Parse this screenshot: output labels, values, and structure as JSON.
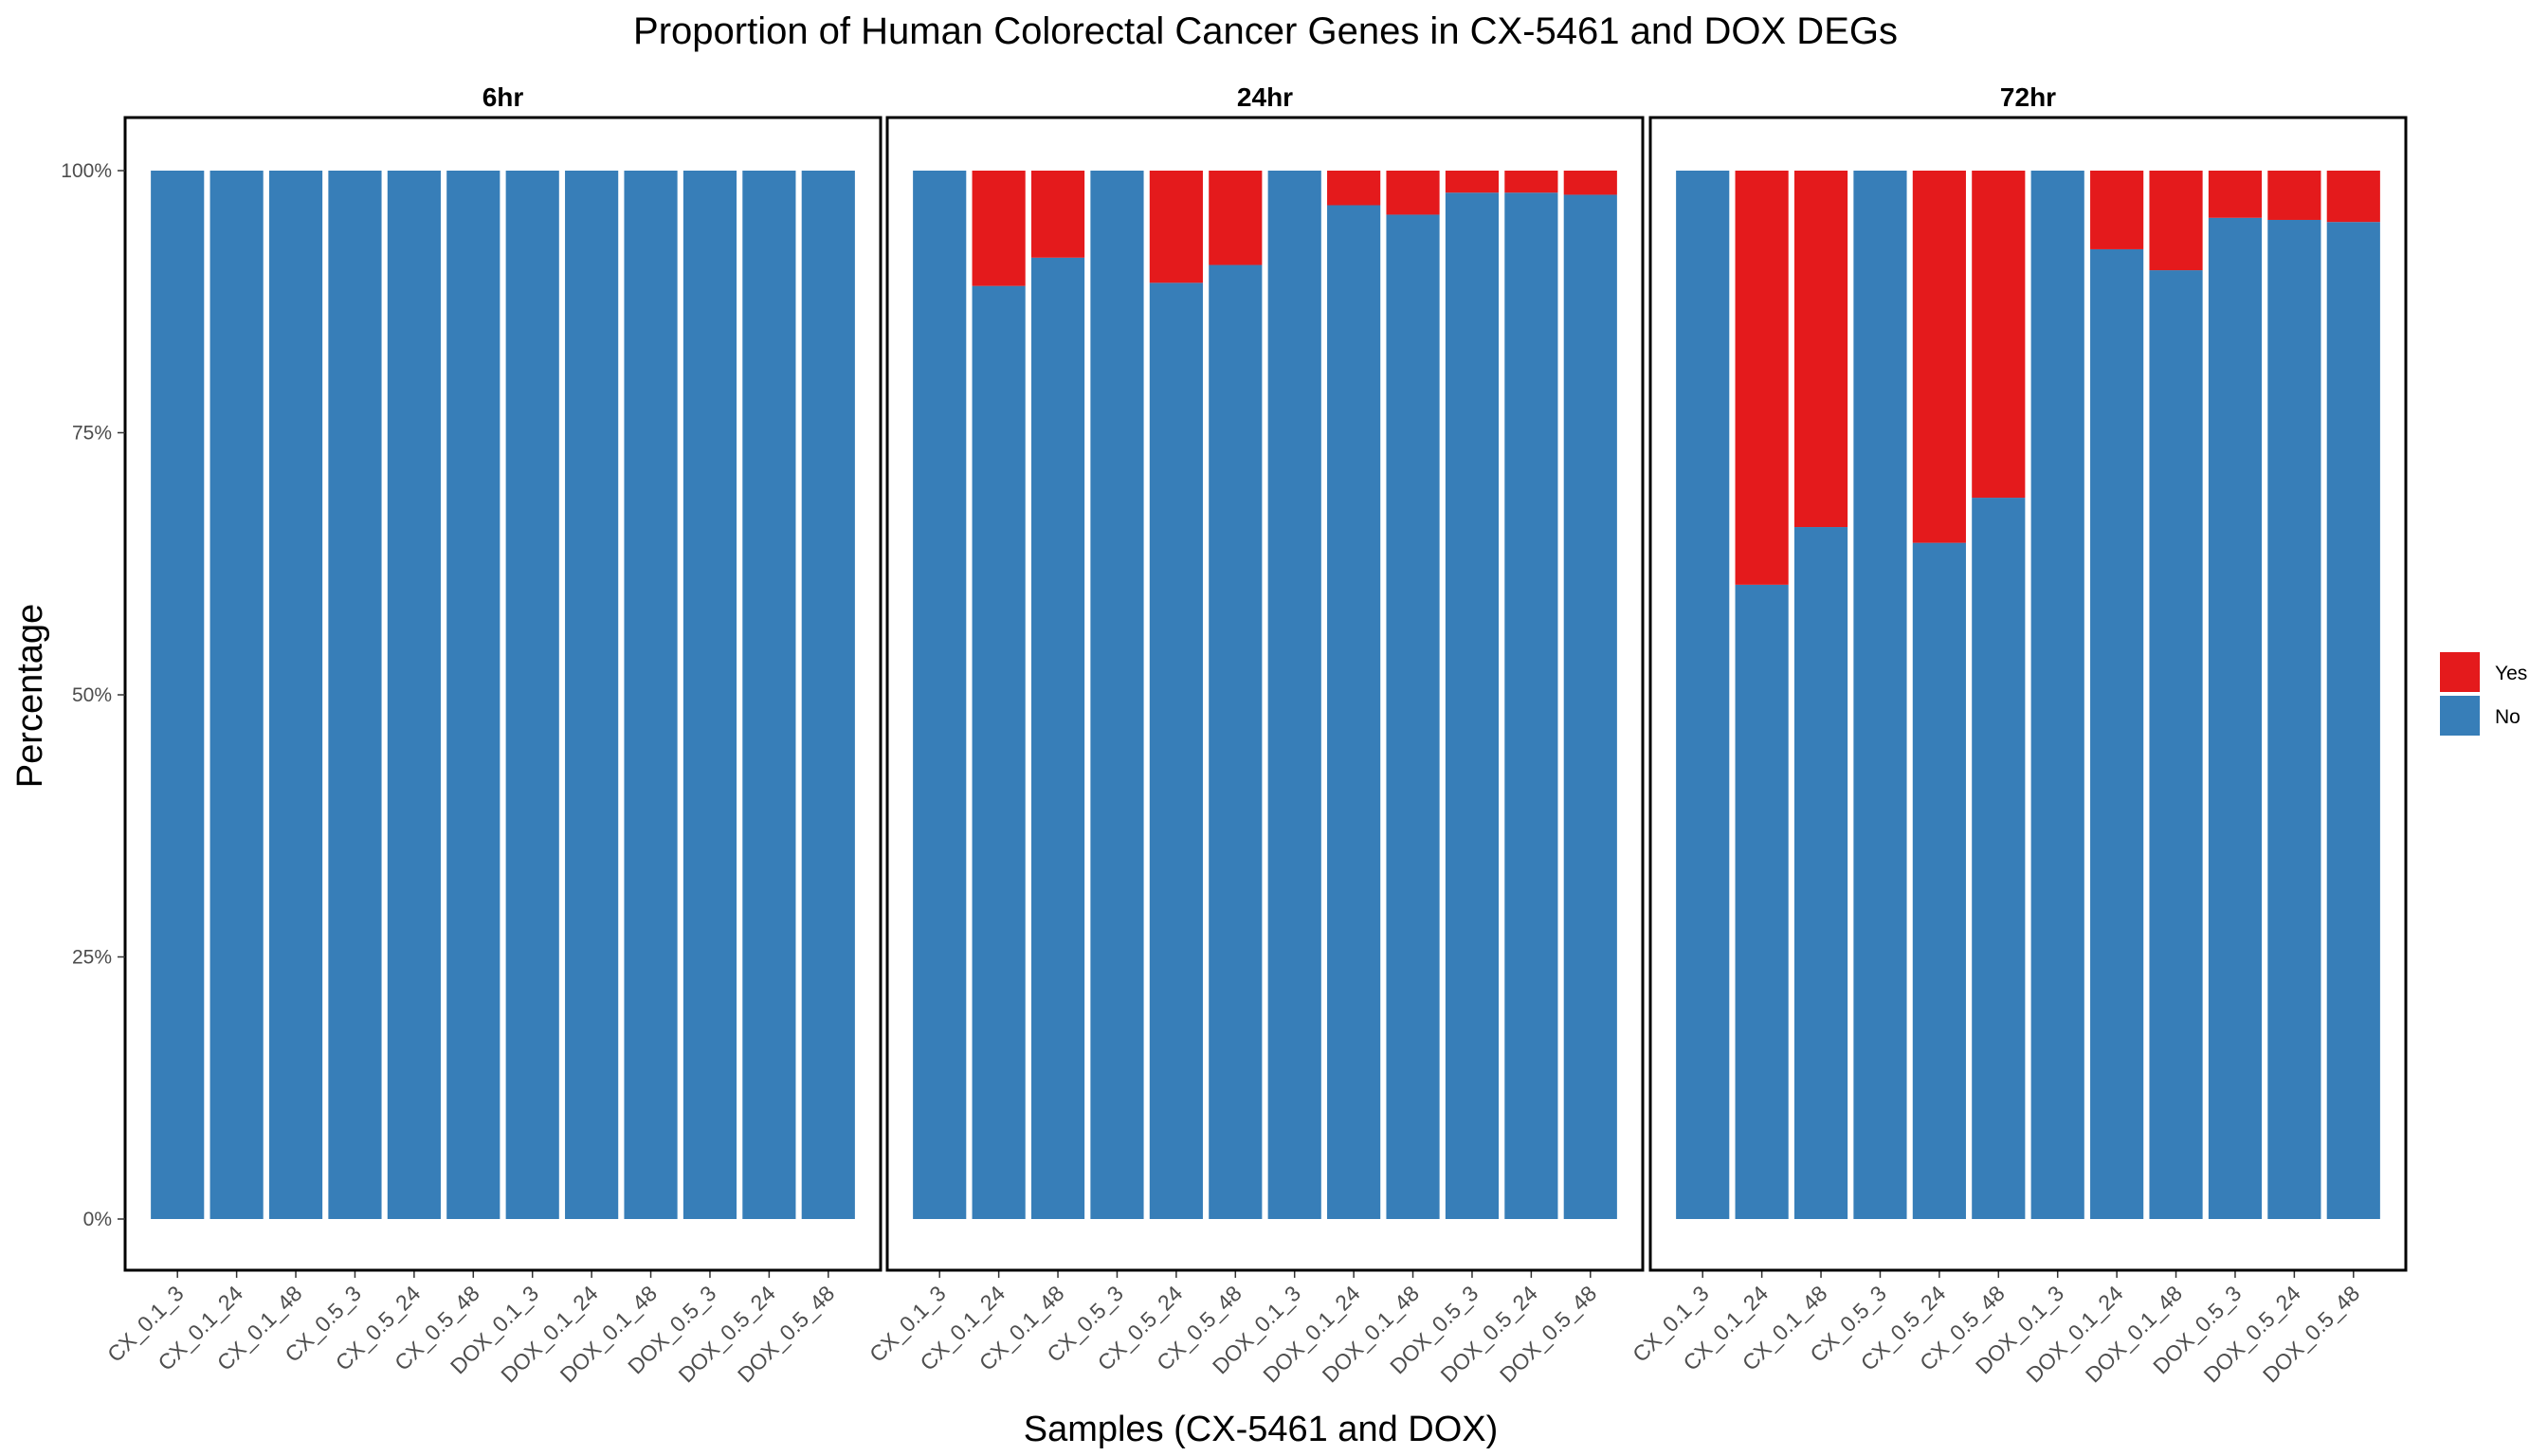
{
  "chart_data": {
    "type": "bar",
    "stacked": true,
    "title": "Proportion of Human Colorectal Cancer Genes in CX-5461 and DOX DEGs",
    "xlabel": "Samples (CX-5461 and DOX)",
    "ylabel": "Percentage",
    "ylim": [
      0,
      100
    ],
    "yticks": [
      "0%",
      "25%",
      "50%",
      "75%",
      "100%"
    ],
    "ytick_values": [
      0,
      25,
      50,
      75,
      100
    ],
    "grid": false,
    "legend_position": "right",
    "categories": [
      "CX_0.1_3",
      "CX_0.1_24",
      "CX_0.1_48",
      "CX_0.5_3",
      "CX_0.5_24",
      "CX_0.5_48",
      "DOX_0.1_3",
      "DOX_0.1_24",
      "DOX_0.1_48",
      "DOX_0.5_3",
      "DOX_0.5_24",
      "DOX_0.5_48"
    ],
    "legend": [
      {
        "name": "Yes",
        "color": "#e41a1c"
      },
      {
        "name": "No",
        "color": "#377eb8"
      }
    ],
    "facets": [
      {
        "label": "6hr",
        "yes": [
          0,
          0,
          0,
          0,
          0,
          0,
          0,
          0,
          0,
          0,
          0,
          0
        ],
        "no": [
          100,
          100,
          100,
          100,
          100,
          100,
          100,
          100,
          100,
          100,
          100,
          100
        ]
      },
      {
        "label": "24hr",
        "yes": [
          0,
          11,
          8.3,
          0,
          10.7,
          9,
          0,
          3.3,
          4.2,
          2.1,
          2.1,
          2.3
        ],
        "no": [
          100,
          89,
          91.7,
          100,
          89.3,
          91,
          100,
          96.7,
          95.8,
          97.9,
          97.9,
          97.7
        ]
      },
      {
        "label": "72hr",
        "yes": [
          0,
          39.5,
          34,
          0,
          35.5,
          31.2,
          0,
          7.5,
          9.5,
          4.5,
          4.7,
          4.9
        ],
        "no": [
          100,
          60.5,
          66,
          100,
          64.5,
          68.8,
          100,
          92.5,
          90.5,
          95.5,
          95.3,
          95.1
        ]
      }
    ]
  }
}
